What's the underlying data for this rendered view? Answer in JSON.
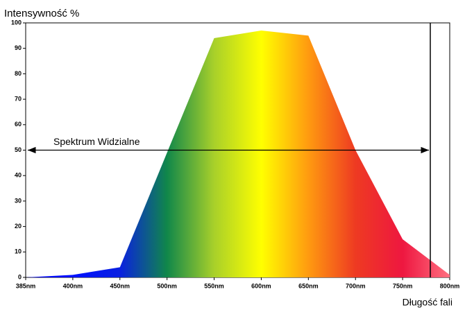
{
  "chart_data": {
    "type": "area",
    "title": "Intensywność %",
    "x_label": "Długość fali",
    "categories": [
      "385nm",
      "400nm",
      "450nm",
      "500nm",
      "550nm",
      "600nm",
      "650nm",
      "700nm",
      "750nm",
      "800nm"
    ],
    "values": [
      0,
      1,
      4,
      49,
      94,
      97,
      95,
      50,
      15,
      1
    ],
    "colors": [
      "#0000ff",
      "#0010ff",
      "#0a20e0",
      "#10874a",
      "#a8d02a",
      "#ffff00",
      "#ff9a10",
      "#ee3a22",
      "#ee1740",
      "#ff6f80"
    ],
    "ylim": [
      0,
      100
    ],
    "yticks": [
      0,
      10,
      20,
      30,
      40,
      50,
      60,
      70,
      80,
      90,
      100
    ],
    "annotation": {
      "text": "Spektrum Widzialne",
      "y": 50
    }
  }
}
